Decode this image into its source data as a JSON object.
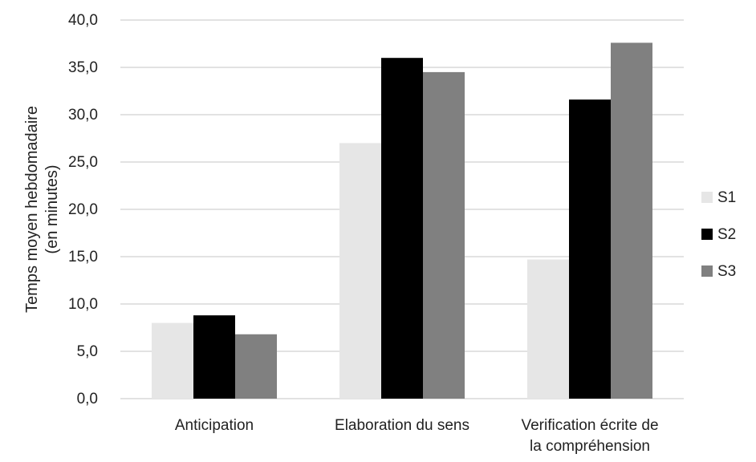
{
  "chart_data": {
    "type": "bar",
    "title": "",
    "ylabel_lines": [
      "Temps moyen hebdomadaire",
      "(en minutes)"
    ],
    "xlabel": "",
    "categories": [
      [
        "Anticipation"
      ],
      [
        "Elaboration du sens"
      ],
      [
        "Verification écrite de",
        "la compréhension"
      ]
    ],
    "series": [
      {
        "name": "S1",
        "color": "#e6e6e6",
        "values": [
          8.0,
          27.0,
          14.7
        ]
      },
      {
        "name": "S2",
        "color": "#000000",
        "values": [
          8.8,
          36.0,
          31.6
        ]
      },
      {
        "name": "S3",
        "color": "#808080",
        "values": [
          6.8,
          34.5,
          37.6
        ]
      }
    ],
    "ylim": [
      0,
      40
    ],
    "yticks": [
      "0,0",
      "5,0",
      "10,0",
      "15,0",
      "20,0",
      "25,0",
      "30,0",
      "35,0",
      "40,0"
    ],
    "grid": true,
    "grid_color": "#d9d9d9",
    "legend_position": "right"
  }
}
